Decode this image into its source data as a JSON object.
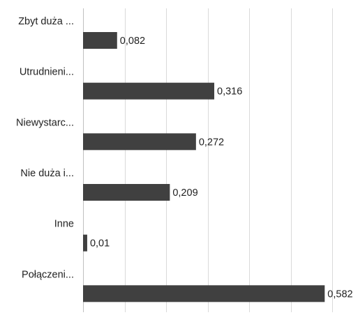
{
  "chart_data": {
    "type": "bar",
    "orientation": "horizontal",
    "categories": [
      "Zbyt duża ...",
      "Utrudnieni...",
      "Niewystarc...",
      "Nie duża i...",
      "Inne",
      "Połączeni..."
    ],
    "values": [
      0.082,
      0.316,
      0.272,
      0.209,
      0.01,
      0.582
    ],
    "data_labels": [
      "0,082",
      "0,316",
      "0,272",
      "0,209",
      "0,01",
      "0,582"
    ],
    "xlim": [
      0,
      0.6
    ],
    "gridlines": "vertical",
    "legend": "none",
    "bar_color": "#404040",
    "grid_color": "#d9d9d9",
    "axis_color": "#bfbfbf",
    "title": "",
    "xlabel": "",
    "ylabel": ""
  }
}
